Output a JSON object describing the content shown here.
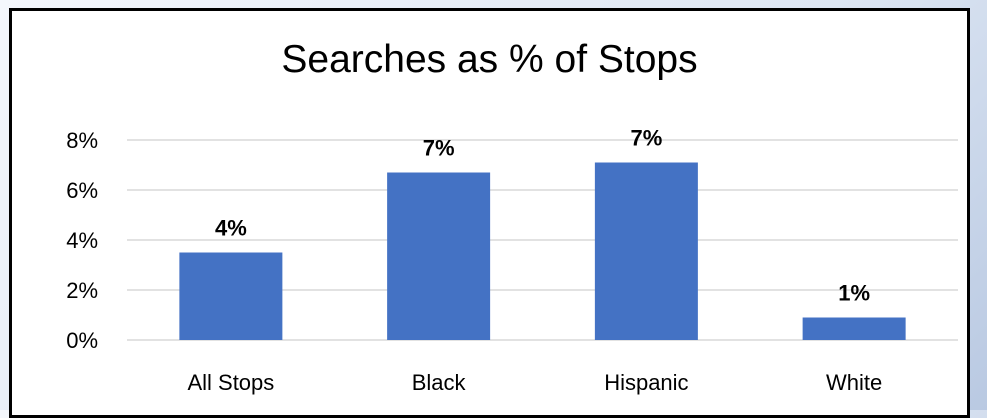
{
  "chart_data": {
    "type": "bar",
    "title": "Searches as % of Stops",
    "categories": [
      "All Stops",
      "Black",
      "Hispanic",
      "White"
    ],
    "values": [
      3.5,
      6.7,
      7.1,
      0.9
    ],
    "data_labels": [
      "4%",
      "7%",
      "7%",
      "1%"
    ],
    "y_ticks": [
      "0%",
      "2%",
      "4%",
      "6%",
      "8%"
    ],
    "ylim": [
      0,
      8
    ],
    "grid": true,
    "bar_color": "#4472C4",
    "gridline_color": "#D9D9D9"
  }
}
